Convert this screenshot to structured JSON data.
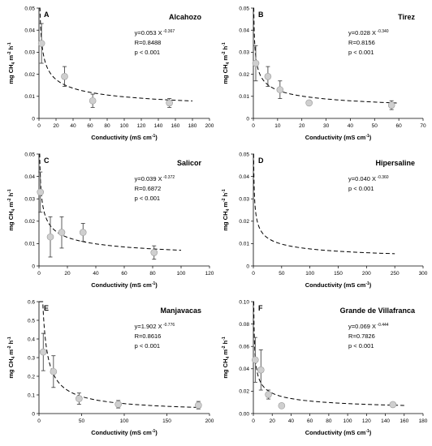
{
  "chart_data": [
    {
      "type": "scatter",
      "letter": "A",
      "title": "Alcahozo",
      "equation": "y=0.053 X",
      "exponent": "-0.367",
      "r": "R=0.8488",
      "p": "p < 0.001",
      "xlabel": "Conductivity (mS cm",
      "xlabel_sup": "-1",
      "xlabel_end": ")",
      "ylabel": "mg CH",
      "xlim": [
        0,
        200
      ],
      "ylim": [
        0,
        0.05
      ],
      "xticks": [
        "0",
        "20",
        "40",
        "60",
        "80",
        "100",
        "120",
        "140",
        "160",
        "180",
        "200"
      ],
      "yticks": [
        "0",
        "0.01",
        "0.02",
        "0.03",
        "0.04",
        "0.05"
      ],
      "fit": {
        "a": 0.053,
        "b": -0.367,
        "xmax": 180
      },
      "points": [
        {
          "x": 3,
          "y": 0.034,
          "err": 0.009
        },
        {
          "x": 30,
          "y": 0.019,
          "err": 0.0045
        },
        {
          "x": 63,
          "y": 0.008,
          "err": 0.003
        },
        {
          "x": 153,
          "y": 0.007,
          "err": 0.002
        }
      ]
    },
    {
      "type": "scatter",
      "letter": "B",
      "title": "Tirez",
      "equation": "y=0.028 X",
      "exponent": "-0.340",
      "r": "R=0.8156",
      "p": "p < 0.001",
      "xlabel": "Conductivity (mS cm",
      "xlabel_sup": "-1",
      "xlabel_end": ")",
      "ylabel": "mg CH",
      "xlim": [
        0,
        70
      ],
      "ylim": [
        0,
        0.05
      ],
      "xticks": [
        "0",
        "10",
        "20",
        "30",
        "40",
        "50",
        "60",
        "70"
      ],
      "yticks": [
        "0",
        "0.01",
        "0.02",
        "0.03",
        "0.04",
        "0.05"
      ],
      "fit": {
        "a": 0.028,
        "b": -0.34,
        "xmax": 60
      },
      "points": [
        {
          "x": 1,
          "y": 0.025,
          "err": 0.008
        },
        {
          "x": 6,
          "y": 0.019,
          "err": 0.0045
        },
        {
          "x": 11,
          "y": 0.013,
          "err": 0.004
        },
        {
          "x": 23,
          "y": 0.007,
          "err": 0.001
        },
        {
          "x": 57,
          "y": 0.006,
          "err": 0.002
        }
      ]
    },
    {
      "type": "scatter",
      "letter": "C",
      "title": "Salicor",
      "equation": "y=0.039 X",
      "exponent": "-0.372",
      "r": "R=0.6872",
      "p": "p < 0.001",
      "xlabel": "Conductivity (mS cm",
      "xlabel_sup": "-1",
      "xlabel_end": ")",
      "ylabel": "mg CH",
      "xlim": [
        0,
        120
      ],
      "ylim": [
        0,
        0.05
      ],
      "xticks": [
        "0",
        "20",
        "40",
        "60",
        "80",
        "100",
        "120"
      ],
      "yticks": [
        "0",
        "0.01",
        "0.02",
        "0.03",
        "0.04",
        "0.05"
      ],
      "fit": {
        "a": 0.039,
        "b": -0.372,
        "xmax": 100
      },
      "points": [
        {
          "x": 1,
          "y": 0.033,
          "err": 0.009
        },
        {
          "x": 8,
          "y": 0.013,
          "err": 0.009
        },
        {
          "x": 16,
          "y": 0.015,
          "err": 0.007
        },
        {
          "x": 31,
          "y": 0.015,
          "err": 0.004
        },
        {
          "x": 81,
          "y": 0.006,
          "err": 0.003
        }
      ]
    },
    {
      "type": "line",
      "letter": "D",
      "title": "Hipersaline",
      "equation": "y=0.040 X",
      "exponent": "-0.360",
      "r": "",
      "p": "p < 0.001",
      "xlabel": "Conductivity (mS cm",
      "xlabel_sup": "-1",
      "xlabel_end": ")",
      "ylabel": "mg CH",
      "xlim": [
        0,
        300
      ],
      "ylim": [
        0,
        0.05
      ],
      "xticks": [
        "0",
        "50",
        "100",
        "150",
        "200",
        "250",
        "300"
      ],
      "yticks": [
        "0",
        "0.01",
        "0.02",
        "0.03",
        "0.04",
        "0.05"
      ],
      "fit": {
        "a": 0.04,
        "b": -0.36,
        "xmax": 250
      },
      "points": []
    },
    {
      "type": "scatter",
      "letter": "E",
      "title": "Manjavacas",
      "equation": "y=1.902 X",
      "exponent": "-0.776",
      "r": "R=0.8616",
      "p": "p < 0.001",
      "xlabel": "Conductivity (mS cm",
      "xlabel_sup": "-1",
      "xlabel_end": ")",
      "ylabel": "mg CH",
      "xlim": [
        0,
        200
      ],
      "ylim": [
        0,
        0.6
      ],
      "xticks": [
        "0",
        "50",
        "100",
        "150",
        "200"
      ],
      "yticks": [
        "0",
        "0.1",
        "0.2",
        "0.3",
        "0.4",
        "0.5",
        "0.6"
      ],
      "fit": {
        "a": 1.902,
        "b": -0.776,
        "xmax": 190
      },
      "points": [
        {
          "x": 5,
          "y": 0.33,
          "err": 0.1
        },
        {
          "x": 17,
          "y": 0.225,
          "err": 0.085
        },
        {
          "x": 47,
          "y": 0.08,
          "err": 0.03
        },
        {
          "x": 93,
          "y": 0.05,
          "err": 0.02
        },
        {
          "x": 187,
          "y": 0.045,
          "err": 0.02
        }
      ]
    },
    {
      "type": "scatter",
      "letter": "F",
      "title": "Grande de Villafranca",
      "equation": "y=0.069 X",
      "exponent": "-0.444",
      "r": "R=0.7826",
      "p": "p < 0.001",
      "xlabel": "Conductivity (mS cm",
      "xlabel_sup": "-1",
      "xlabel_end": ")",
      "ylabel": "mg CH",
      "xlim": [
        0,
        180
      ],
      "ylim": [
        0,
        0.1
      ],
      "xticks": [
        "0",
        "20",
        "40",
        "60",
        "80",
        "100",
        "120",
        "140",
        "160",
        "180"
      ],
      "yticks": [
        "0.00",
        "0.02",
        "0.04",
        "0.06",
        "0.08",
        "0.10"
      ],
      "fit": {
        "a": 0.069,
        "b": -0.444,
        "xmax": 160
      },
      "points": [
        {
          "x": 2,
          "y": 0.048,
          "err": 0.02
        },
        {
          "x": 8,
          "y": 0.039,
          "err": 0.018
        },
        {
          "x": 16,
          "y": 0.017,
          "err": 0.004
        },
        {
          "x": 30,
          "y": 0.007,
          "err": 0.002
        },
        {
          "x": 148,
          "y": 0.008,
          "err": 0.002
        }
      ]
    }
  ]
}
